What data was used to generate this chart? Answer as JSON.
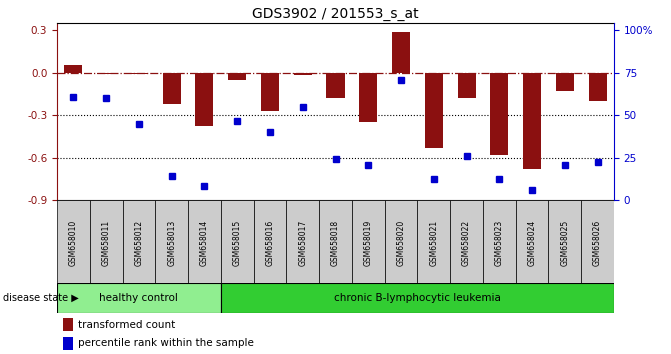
{
  "title": "GDS3902 / 201553_s_at",
  "samples": [
    "GSM658010",
    "GSM658011",
    "GSM658012",
    "GSM658013",
    "GSM658014",
    "GSM658015",
    "GSM658016",
    "GSM658017",
    "GSM658018",
    "GSM658019",
    "GSM658020",
    "GSM658021",
    "GSM658022",
    "GSM658023",
    "GSM658024",
    "GSM658025",
    "GSM658026"
  ],
  "bar_values": [
    0.05,
    -0.01,
    -0.01,
    -0.22,
    -0.38,
    -0.05,
    -0.27,
    -0.02,
    -0.18,
    -0.35,
    0.29,
    -0.53,
    -0.18,
    -0.58,
    -0.68,
    -0.13,
    -0.2
  ],
  "blue_values": [
    -0.17,
    -0.18,
    -0.36,
    -0.73,
    -0.8,
    -0.34,
    -0.42,
    -0.24,
    -0.61,
    -0.65,
    -0.05,
    -0.75,
    -0.59,
    -0.75,
    -0.83,
    -0.65,
    -0.63
  ],
  "healthy_count": 5,
  "ylim_left": [
    -0.9,
    0.35
  ],
  "yticks_left": [
    -0.9,
    -0.6,
    -0.3,
    0.0,
    0.3
  ],
  "right_ticks_pos": [
    -0.9,
    -0.6,
    -0.3,
    0.0,
    0.3
  ],
  "right_tick_labels": [
    "0",
    "25",
    "50",
    "75",
    "100%"
  ],
  "bar_color": "#8B1010",
  "blue_color": "#0000CD",
  "healthy_label": "healthy control",
  "disease_label": "chronic B-lymphocytic leukemia",
  "disease_state_label": "disease state",
  "legend_bar": "transformed count",
  "legend_blue": "percentile rank within the sample",
  "healthy_color": "#90EE90",
  "disease_color": "#32CD32",
  "label_area_color": "#CCCCCC",
  "title_fontsize": 10,
  "tick_fontsize": 7.5,
  "bar_width": 0.55
}
